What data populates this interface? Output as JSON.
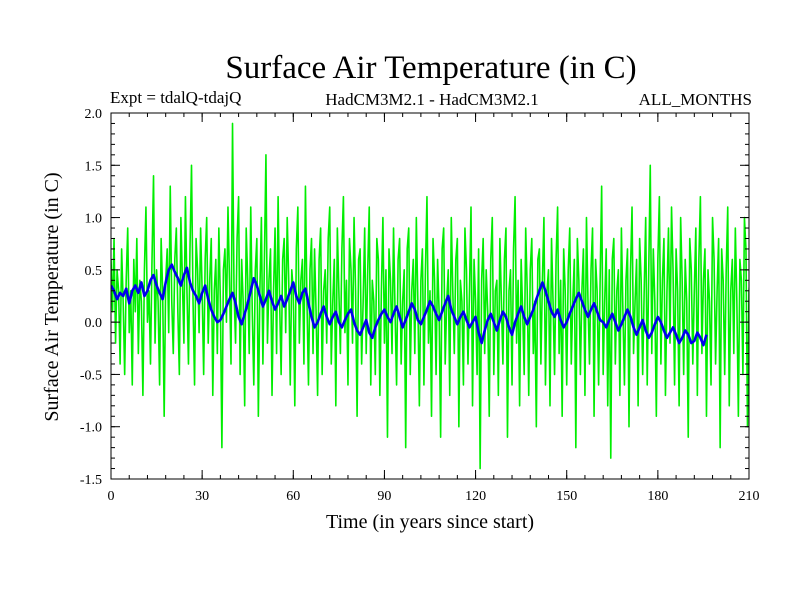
{
  "chart_data": {
    "type": "line",
    "title": "Surface Air Temperature (in C)",
    "subtitle_left": "Expt = tdalQ-tdajQ",
    "subtitle_center": "HadCM3M2.1 - HadCM3M2.1",
    "subtitle_right": "ALL_MONTHS",
    "xlabel": "Time (in years since start)",
    "ylabel": "Surface Air Temperature (in C)",
    "xlim": [
      0,
      210
    ],
    "ylim": [
      -1.5,
      2.0
    ],
    "x_ticks": [
      0,
      30,
      60,
      90,
      120,
      150,
      180,
      210
    ],
    "x_tick_labels": [
      "0",
      "30",
      "60",
      "90",
      "120",
      "150",
      "180",
      "210"
    ],
    "y_ticks": [
      -1.5,
      -1.0,
      -0.5,
      0.0,
      0.5,
      1.0,
      1.5,
      2.0
    ],
    "y_tick_labels": [
      "-1.5",
      "-1.0",
      "-0.5",
      "0.0",
      "0.5",
      "1.0",
      "1.5",
      "2.0"
    ],
    "x_minor_step": 6,
    "y_minor_step": 0.1,
    "grid": false,
    "series": [
      {
        "name": "monthly",
        "color": "#00ee00",
        "x_start": 0,
        "x_step": 0.5,
        "values": [
          0.6,
          0.1,
          0.8,
          -0.2,
          0.5,
          0.3,
          -0.4,
          0.7,
          0.2,
          -0.5,
          0.4,
          0.9,
          -0.1,
          0.3,
          -0.6,
          0.6,
          0.1,
          0.8,
          -0.3,
          0.4,
          0.2,
          -0.7,
          0.5,
          1.1,
          0.0,
          0.3,
          -0.4,
          0.6,
          1.4,
          -0.2,
          0.5,
          0.2,
          -0.6,
          0.8,
          0.3,
          -0.9,
          0.4,
          0.7,
          -0.1,
          1.3,
          0.2,
          -0.3,
          0.6,
          0.9,
          0.1,
          -0.5,
          1.0,
          0.4,
          -0.2,
          1.2,
          0.3,
          -0.4,
          0.7,
          1.5,
          0.2,
          -0.6,
          0.8,
          0.5,
          -0.1,
          0.9,
          0.3,
          -0.5,
          0.6,
          1.0,
          -0.2,
          0.4,
          0.8,
          -0.7,
          0.3,
          0.6,
          -0.3,
          0.9,
          0.2,
          -1.2,
          0.5,
          0.7,
          0.0,
          1.1,
          0.4,
          -0.4,
          1.9,
          0.3,
          -0.2,
          0.8,
          1.2,
          -0.5,
          0.6,
          0.2,
          -0.8,
          0.9,
          0.4,
          -0.3,
          1.1,
          0.1,
          -0.6,
          0.5,
          0.8,
          -0.9,
          0.3,
          1.0,
          -0.4,
          0.6,
          1.6,
          -0.2,
          0.4,
          0.7,
          -0.7,
          0.3,
          0.9,
          -0.3,
          1.2,
          0.2,
          -0.5,
          0.6,
          0.8,
          -0.1,
          1.0,
          0.4,
          -0.6,
          0.5,
          0.3,
          -0.8,
          0.7,
          1.1,
          -0.2,
          0.4,
          0.6,
          -0.4,
          1.3,
          0.2,
          -0.6,
          0.5,
          0.8,
          -0.3,
          0.7,
          0.1,
          -0.7,
          0.6,
          0.9,
          -0.5,
          0.3,
          0.5,
          -0.2,
          0.8,
          1.1,
          -0.4,
          0.2,
          0.6,
          -0.8,
          0.9,
          0.3,
          -0.3,
          0.7,
          1.2,
          -0.1,
          0.4,
          -0.6,
          0.8,
          0.5,
          -0.2,
          1.0,
          0.3,
          -0.9,
          0.6,
          0.7,
          -0.4,
          0.2,
          0.9,
          -0.3,
          0.5,
          1.1,
          -0.6,
          0.4,
          0.2,
          -0.5,
          0.8,
          0.6,
          -0.7,
          0.3,
          1.0,
          -0.2,
          0.5,
          -1.1,
          0.7,
          0.4,
          -0.3,
          0.9,
          0.1,
          -0.6,
          0.6,
          0.8,
          -0.4,
          0.2,
          0.5,
          -1.2,
          0.7,
          0.9,
          -0.5,
          0.3,
          0.6,
          -0.3,
          1.0,
          0.2,
          -0.8,
          0.4,
          0.7,
          -0.6,
          0.5,
          1.2,
          -0.2,
          0.3,
          -0.9,
          0.8,
          0.4,
          -0.5,
          0.6,
          0.1,
          -1.1,
          0.7,
          0.9,
          -0.4,
          0.2,
          0.5,
          -0.7,
          1.0,
          0.3,
          -0.3,
          0.6,
          0.8,
          -1.0,
          0.4,
          0.2,
          -0.6,
          0.9,
          0.5,
          -0.4,
          0.3,
          1.1,
          -0.8,
          0.6,
          0.2,
          -0.5,
          0.7,
          -1.4,
          0.4,
          0.8,
          -0.3,
          0.5,
          0.1,
          -0.9,
          0.6,
          1.0,
          -0.5,
          0.3,
          0.4,
          -0.7,
          0.8,
          0.2,
          -0.4,
          0.6,
          0.9,
          -1.1,
          0.3,
          0.5,
          -0.6,
          0.7,
          1.2,
          -0.2,
          0.4,
          -0.8,
          0.6,
          0.1,
          -0.5,
          0.9,
          0.3,
          -0.7,
          0.5,
          0.8,
          -0.3,
          0.2,
          -1.0,
          0.6,
          0.7,
          -0.4,
          0.4,
          1.0,
          -0.6,
          0.3,
          0.5,
          -0.8,
          0.8,
          0.2,
          -0.5,
          0.6,
          1.1,
          -0.3,
          0.4,
          -0.9,
          0.7,
          0.3,
          -0.6,
          0.5,
          0.9,
          -0.4,
          0.2,
          0.6,
          -1.2,
          0.8,
          0.4,
          -0.5,
          0.3,
          0.7,
          -0.7,
          1.0,
          0.2,
          -0.4,
          0.5,
          0.9,
          -0.9,
          0.6,
          0.3,
          -0.6,
          0.4,
          1.3,
          -0.5,
          0.2,
          0.7,
          -0.8,
          0.5,
          -1.3,
          0.6,
          0.8,
          -0.4,
          0.3,
          0.5,
          -0.7,
          0.9,
          0.1,
          -0.6,
          0.4,
          0.7,
          -1.0,
          0.5,
          1.1,
          -0.3,
          0.2,
          0.6,
          -0.8,
          0.8,
          0.4,
          -0.5,
          0.3,
          1.0,
          -0.6,
          0.5,
          1.5,
          -0.3,
          0.7,
          0.2,
          -0.9,
          0.6,
          1.2,
          -0.4,
          0.4,
          0.8,
          -0.7,
          0.3,
          0.9,
          -0.2,
          1.1,
          0.5,
          -0.6,
          0.7,
          0.3,
          -0.8,
          1.0,
          0.4,
          -0.5,
          0.6,
          0.2,
          -1.1,
          0.8,
          0.5,
          -0.4,
          0.3,
          0.9,
          -0.7,
          0.6,
          1.2,
          -0.3,
          0.4,
          0.7,
          -0.9,
          0.5,
          0.2,
          -0.6,
          1.0,
          0.6,
          -0.4,
          0.3,
          0.8,
          -1.2,
          0.7,
          0.4,
          -0.5,
          0.5,
          1.1,
          -0.8,
          0.3,
          0.6,
          -0.3,
          0.9,
          0.2,
          -0.9,
          0.6,
          0.4,
          -0.5,
          1.0,
          0.7,
          -1.0,
          0.3,
          0.5,
          -0.6,
          0.8,
          0.2,
          -0.4,
          0.6,
          0.9,
          -0.8,
          0.4,
          0.3,
          -1.1,
          0.7,
          0.5,
          -0.5,
          0.2,
          0.8,
          -0.9,
          0.6,
          0.4,
          -0.3,
          0.9,
          0.1,
          -0.7,
          0.5,
          -1.3,
          0.4,
          0.7,
          -0.6,
          0.3,
          0.8,
          -0.8,
          0.5,
          1.0,
          -0.4,
          0.2,
          0.6,
          -1.0,
          0.7,
          0.3,
          -0.5,
          0.6,
          0.9,
          -0.7,
          0.4,
          0.2,
          -1.1,
          0.8,
          0.5,
          -0.3,
          0.4,
          -0.8
        ]
      },
      {
        "name": "smoothed",
        "color": "#0000ee",
        "x_start": 0,
        "x_step": 1,
        "values": [
          0.35,
          0.3,
          0.22,
          0.28,
          0.25,
          0.32,
          0.18,
          0.3,
          0.35,
          0.28,
          0.38,
          0.25,
          0.3,
          0.4,
          0.45,
          0.35,
          0.28,
          0.22,
          0.38,
          0.5,
          0.55,
          0.48,
          0.42,
          0.35,
          0.45,
          0.52,
          0.38,
          0.3,
          0.25,
          0.18,
          0.28,
          0.35,
          0.22,
          0.12,
          0.05,
          0.0,
          0.02,
          0.08,
          0.15,
          0.22,
          0.28,
          0.18,
          0.05,
          -0.02,
          0.08,
          0.18,
          0.3,
          0.42,
          0.35,
          0.25,
          0.15,
          0.22,
          0.3,
          0.2,
          0.12,
          0.18,
          0.25,
          0.15,
          0.22,
          0.3,
          0.38,
          0.25,
          0.18,
          0.28,
          0.32,
          0.18,
          0.05,
          -0.05,
          0.0,
          0.08,
          0.15,
          0.05,
          -0.02,
          0.05,
          0.1,
          0.0,
          -0.05,
          0.02,
          0.08,
          0.12,
          0.0,
          -0.08,
          -0.12,
          -0.05,
          0.02,
          -0.1,
          -0.15,
          -0.05,
          0.02,
          0.08,
          0.12,
          0.05,
          0.0,
          0.08,
          0.15,
          0.05,
          -0.05,
          0.02,
          0.1,
          0.18,
          0.12,
          0.02,
          -0.02,
          0.05,
          0.12,
          0.2,
          0.15,
          0.08,
          0.02,
          0.1,
          0.18,
          0.25,
          0.12,
          0.05,
          -0.02,
          0.05,
          0.1,
          0.02,
          -0.05,
          0.0,
          0.05,
          -0.1,
          -0.2,
          -0.08,
          0.02,
          0.08,
          0.0,
          -0.08,
          0.02,
          0.1,
          0.05,
          -0.05,
          -0.12,
          0.0,
          0.08,
          0.15,
          0.05,
          -0.02,
          0.05,
          0.12,
          0.22,
          0.3,
          0.38,
          0.3,
          0.2,
          0.1,
          0.05,
          0.12,
          0.02,
          -0.05,
          0.0,
          0.08,
          0.15,
          0.22,
          0.28,
          0.2,
          0.12,
          0.05,
          0.12,
          0.18,
          0.1,
          0.02,
          0.0,
          -0.05,
          0.02,
          0.08,
          0.0,
          -0.08,
          -0.02,
          0.05,
          0.12,
          0.05,
          -0.05,
          -0.12,
          -0.05,
          0.02,
          -0.08,
          -0.15,
          -0.1,
          -0.02,
          0.05,
          0.0,
          -0.08,
          -0.15,
          -0.1,
          -0.05,
          -0.12,
          -0.2,
          -0.15,
          -0.08,
          -0.12,
          -0.2,
          -0.18,
          -0.1,
          -0.15,
          -0.22,
          -0.12
        ]
      }
    ]
  }
}
